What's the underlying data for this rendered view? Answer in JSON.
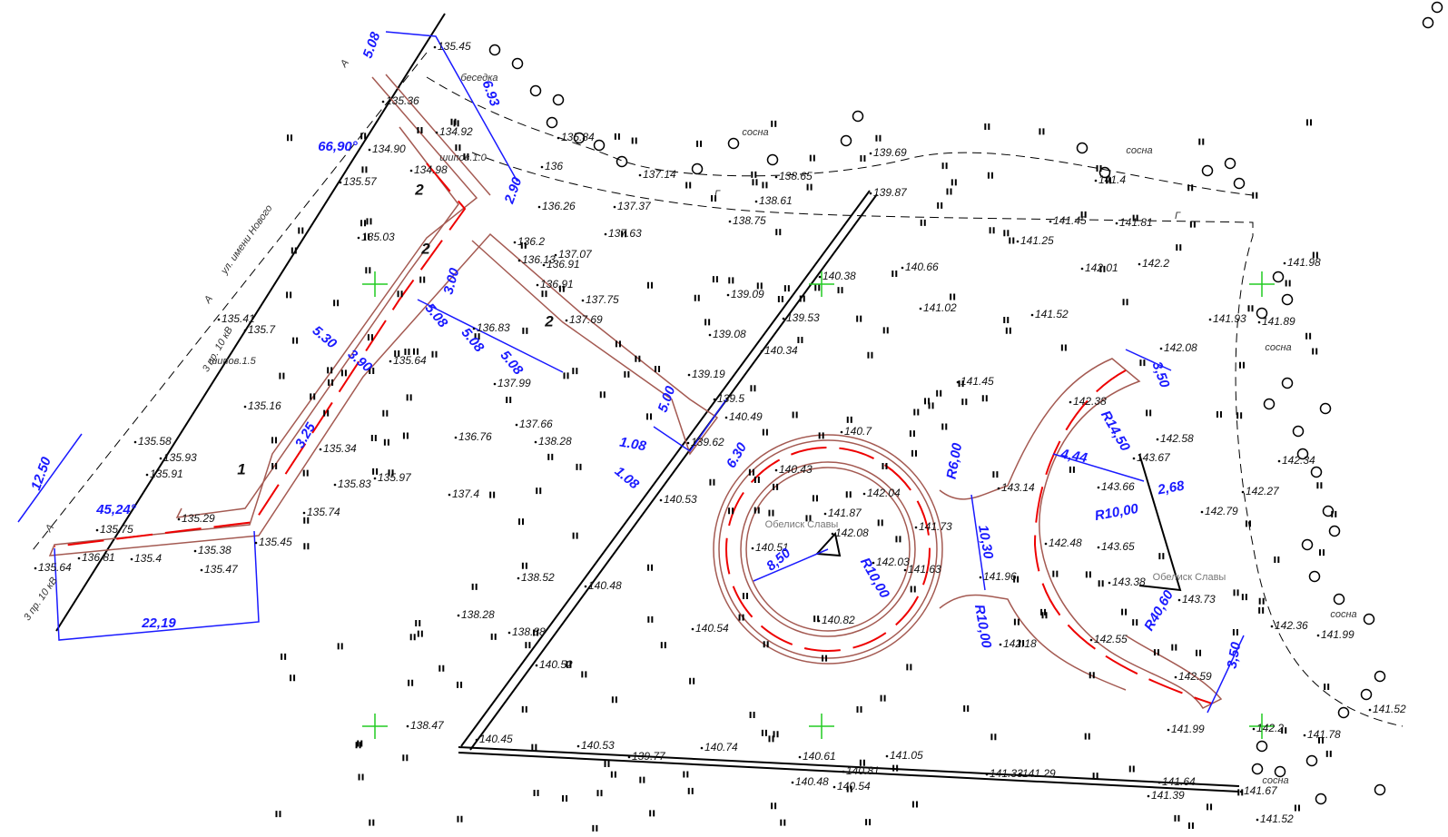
{
  "elevations": [
    "135.45",
    "135.36",
    "134.92",
    "134.90",
    "134.98",
    "135.57",
    "135.03",
    "135.84",
    "136",
    "136.26",
    "137.37",
    "137.14",
    "137.63",
    "136.2",
    "137.07",
    "136.13",
    "136.91",
    "136.91",
    "137.75",
    "137.69",
    "136.83",
    "135.41",
    "135.7",
    "135.64",
    "135.16",
    "137.99",
    "136.76",
    "137.66",
    "138.28",
    "135.34",
    "135.58",
    "135.93",
    "135.91",
    "135.83",
    "135.97",
    "135.74",
    "135.75",
    "135.29",
    "135.45",
    "135.38",
    "136.81",
    "135.4",
    "135.47",
    "135.64",
    "137.4",
    "138.52",
    "138.28",
    "138.88",
    "140.52",
    "140.48",
    "140.54",
    "138.47",
    "140.45",
    "139.77",
    "140.53",
    "140.74",
    "140.61",
    "141.05",
    "140.48",
    "140.54",
    "141.29",
    "141.64",
    "141.39",
    "141.67",
    "141.52",
    "138.65",
    "138.61",
    "138.75",
    "139.69",
    "139.87",
    "140.38",
    "139.09",
    "139.08",
    "139.53",
    "140.34",
    "139.19",
    "139.5",
    "140.49",
    "139.62",
    "140.53",
    "140.43",
    "140.7",
    "142.04",
    "141.87",
    "142.08",
    "141.73",
    "140.51",
    "142.03",
    "141.63",
    "140.82",
    "140.66",
    "141.02",
    "141.45",
    "141.25",
    "141.45",
    "141.81",
    "142.01",
    "142.2",
    "141.52",
    "142.08",
    "142.38",
    "143.14",
    "141.96",
    "142.18",
    "142.48",
    "143.67",
    "143.66",
    "143.65",
    "143.38",
    "143.73",
    "142.58",
    "142.55",
    "142.59",
    "141.99",
    "142.79",
    "142.27",
    "142.34",
    "142.36",
    "141.99",
    "141.52",
    "142.2",
    "141.78",
    "141.4",
    "141.93",
    "141.89",
    "141.98",
    "141.33",
    "140.81"
  ],
  "dimensions": [
    "5.08",
    "6.93",
    "66,90°",
    "2.90",
    "3.00",
    "5.08",
    "5.08",
    "5.08",
    "5.30",
    "3.90",
    "3.25",
    "12.50",
    "45,24°",
    "22,19",
    "5.00",
    "1.08",
    "1.08",
    "6.30",
    "R6,00",
    "10,30",
    "R10,00",
    "8,50",
    "R10,00",
    "3,50",
    "R14,50",
    "4,44",
    "2,68",
    "R10,00",
    "R40,60",
    "3,50"
  ],
  "notes": [
    "ул. имени Нового",
    "3 пр. 10 кВ",
    "3 пр. 10 кВ",
    "А",
    "А",
    "А",
    "беседка",
    "сосна",
    "сосна",
    "сосна",
    "сосна",
    "сосна",
    "шипов.1.0",
    "шипов.1.5",
    "Г",
    "Г"
  ],
  "monuments": [
    "Обелиск Славы",
    "Обелиск Славы"
  ],
  "markers": [
    "1",
    "2",
    "2",
    "2"
  ]
}
